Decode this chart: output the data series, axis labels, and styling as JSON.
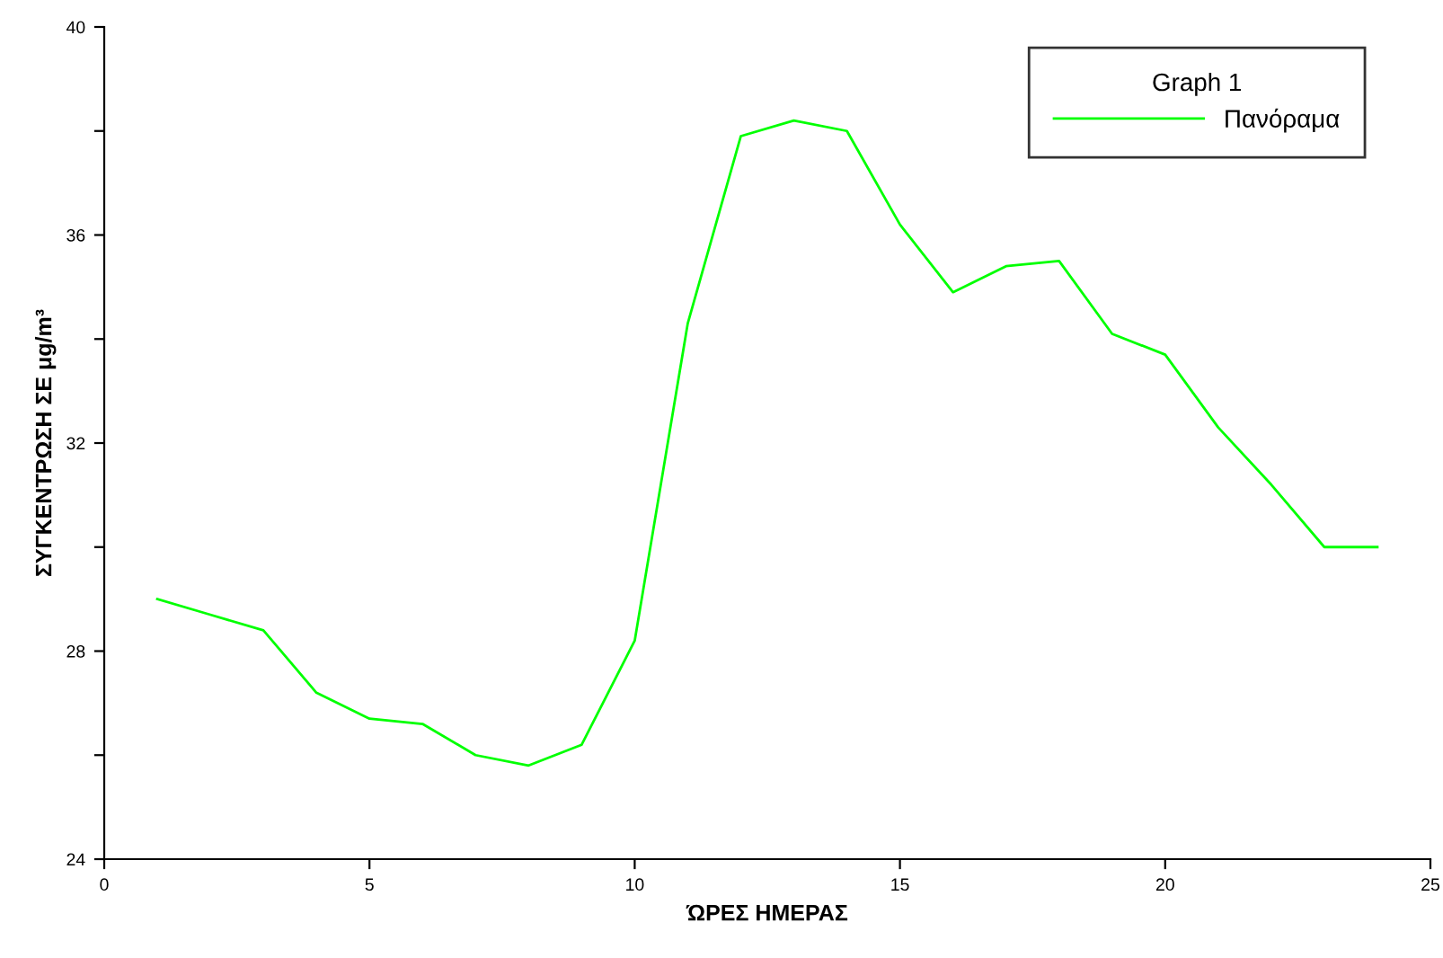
{
  "chart_data": {
    "type": "line",
    "xlabel": "ΏΡΕΣ ΗΜΕΡΑΣ",
    "ylabel": "ΣΥΓΚΕΝΤΡΩΣΗ ΣΕ μg/m³",
    "legend_title": "Graph 1",
    "x": [
      1,
      2,
      3,
      4,
      5,
      6,
      7,
      8,
      9,
      10,
      11,
      12,
      13,
      14,
      15,
      16,
      17,
      18,
      19,
      20,
      21,
      22,
      23,
      24
    ],
    "series": [
      {
        "name": "Πανόραμα",
        "color": "#00ff00",
        "values": [
          29.0,
          28.7,
          28.4,
          27.2,
          26.7,
          26.6,
          26.0,
          25.8,
          26.2,
          28.2,
          34.3,
          37.9,
          38.2,
          38.0,
          36.2,
          34.9,
          35.4,
          35.5,
          34.1,
          33.7,
          32.3,
          31.2,
          30.0,
          30.0
        ]
      }
    ],
    "xlim": [
      0,
      25
    ],
    "xticks": [
      0,
      5,
      10,
      15,
      20,
      25
    ],
    "ylim": [
      24,
      40
    ],
    "yticks": [
      24,
      {
        "value": 26,
        "label": null
      },
      28,
      {
        "value": 30,
        "label": null
      },
      32,
      {
        "value": 34,
        "label": null
      },
      36,
      {
        "value": 38,
        "label": null
      },
      40
    ],
    "grid": false,
    "legend": "top right",
    "marker": "none",
    "line_style": "solid"
  }
}
